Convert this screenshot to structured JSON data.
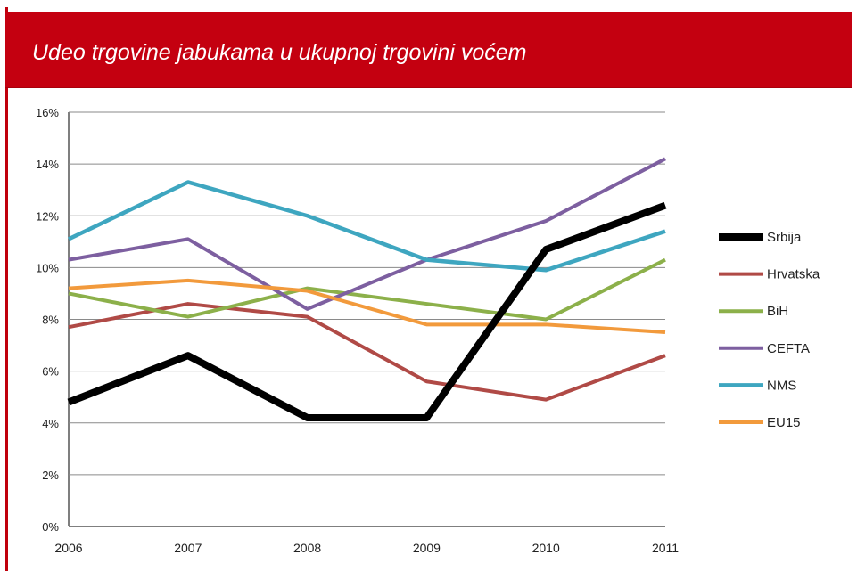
{
  "chart_data": {
    "type": "line",
    "title": "Udeo trgovine jabukama u ukupnoj trgovini voćem",
    "categories": [
      "2006",
      "2007",
      "2008",
      "2009",
      "2010",
      "2011"
    ],
    "y_ticks": [
      "0%",
      "2%",
      "4%",
      "6%",
      "8%",
      "10%",
      "12%",
      "14%",
      "16%"
    ],
    "ylim": [
      0,
      16
    ],
    "grid": "horizontal",
    "legend_position": "right",
    "series": [
      {
        "name": "Srbija",
        "color": "#000000",
        "width": 8,
        "values": [
          4.8,
          6.6,
          4.2,
          4.2,
          10.7,
          12.4
        ]
      },
      {
        "name": "Hrvatska",
        "color": "#b04a46",
        "width": 4,
        "values": [
          7.7,
          8.6,
          8.1,
          5.6,
          4.9,
          6.6
        ]
      },
      {
        "name": "BiH",
        "color": "#8cb04a",
        "width": 4,
        "values": [
          9.0,
          8.1,
          9.2,
          8.6,
          8.0,
          10.3
        ]
      },
      {
        "name": "CEFTA",
        "color": "#7d5fa0",
        "width": 4,
        "values": [
          10.3,
          11.1,
          8.4,
          10.3,
          11.8,
          14.2
        ]
      },
      {
        "name": "NMS",
        "color": "#3ea6c0",
        "width": 4.5,
        "values": [
          11.1,
          13.3,
          12.0,
          10.3,
          9.9,
          11.4
        ]
      },
      {
        "name": "EU15",
        "color": "#f29a3c",
        "width": 4,
        "values": [
          9.2,
          9.5,
          9.1,
          7.8,
          7.8,
          7.5
        ]
      }
    ]
  }
}
